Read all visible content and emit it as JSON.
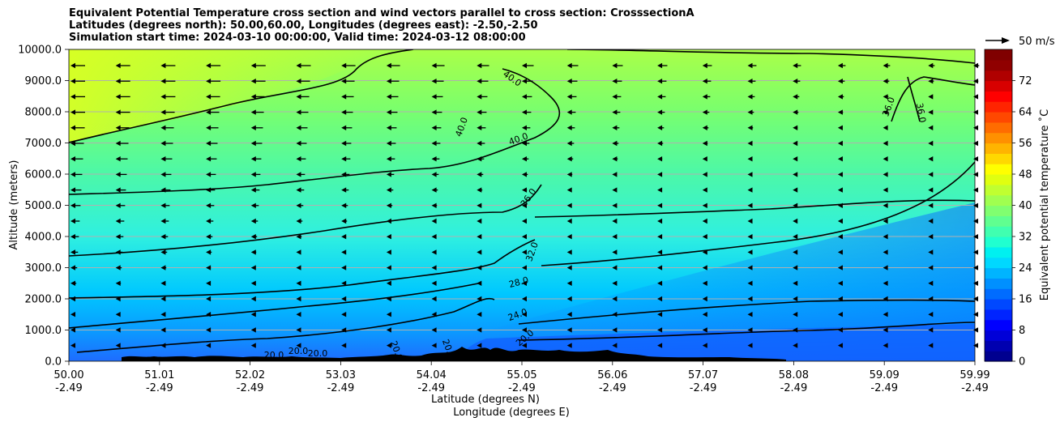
{
  "chart_data": {
    "type": "contour",
    "title_lines": [
      "Equivalent Potential Temperature cross section and wind vectors parallel to cross section: CrosssectionA",
      "Latitudes (degrees north): 50.00,60.00, Longitudes (degrees east): -2.50,-2.50",
      "Simulation start time: 2024-03-10 00:00:00, Valid time: 2024-03-12 08:00:00"
    ],
    "xlabel_lat": "Latitude (degrees N)",
    "xlabel_lon": "Longitude (degrees E)",
    "ylabel": "Altitude (meters)",
    "x_range": [
      50.0,
      59.99
    ],
    "y_range": [
      0,
      10000
    ],
    "x_ticks": [
      {
        "lat": "50.00",
        "lon": "-2.49"
      },
      {
        "lat": "51.01",
        "lon": "-2.49"
      },
      {
        "lat": "52.02",
        "lon": "-2.49"
      },
      {
        "lat": "53.03",
        "lon": "-2.49"
      },
      {
        "lat": "54.04",
        "lon": "-2.49"
      },
      {
        "lat": "55.05",
        "lon": "-2.49"
      },
      {
        "lat": "56.06",
        "lon": "-2.49"
      },
      {
        "lat": "57.07",
        "lon": "-2.49"
      },
      {
        "lat": "58.08",
        "lon": "-2.49"
      },
      {
        "lat": "59.09",
        "lon": "-2.49"
      },
      {
        "lat": "59.99",
        "lon": "-2.49"
      }
    ],
    "y_ticks": [
      "0.0",
      "1000.0",
      "2000.0",
      "3000.0",
      "4000.0",
      "5000.0",
      "6000.0",
      "7000.0",
      "8000.0",
      "9000.0",
      "10000.0"
    ],
    "grid": true,
    "colorbar": {
      "label": "Equivalent potential temperature ˚C",
      "min": 0,
      "max": 80,
      "ticks": [
        "0",
        "8",
        "16",
        "24",
        "32",
        "40",
        "48",
        "56",
        "64",
        "72"
      ]
    },
    "contour_labels": [
      "40.0",
      "40.0",
      "40.0",
      "36.0",
      "36.0",
      "36.0",
      "32.0",
      "28.0",
      "24.0",
      "20.0",
      "20.0",
      "20.0",
      "20.0",
      "20.0",
      "20.0"
    ],
    "wind_key": {
      "label": "50 m/s",
      "magnitude": 50
    },
    "wind_note": "Vectors point southward (toward lower latitude); strongest near the top-left, weakening toward the lower right."
  }
}
